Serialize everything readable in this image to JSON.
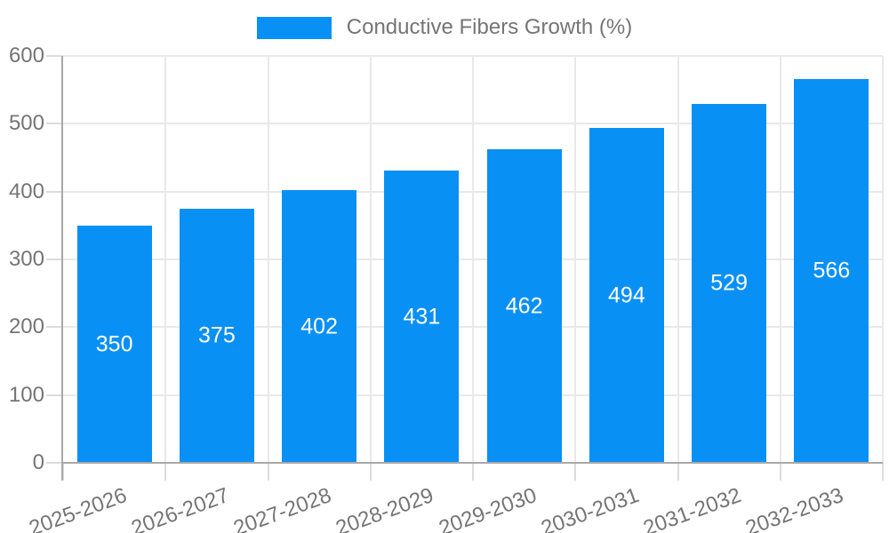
{
  "chart_data": {
    "type": "bar",
    "title": "",
    "legend": {
      "label": "Conductive Fibers Growth (%)",
      "position": "top-center"
    },
    "categories": [
      "2025-2026",
      "2026-2027",
      "2027-2028",
      "2028-2029",
      "2029-2030",
      "2030-2031",
      "2031-2032",
      "2032-2033"
    ],
    "values": [
      350,
      375,
      402,
      431,
      462,
      494,
      529,
      566
    ],
    "value_labels_shown": true,
    "value_label_position": "inside-center",
    "xlabel": "",
    "ylabel": "",
    "ylim": [
      0,
      600
    ],
    "yticks": [
      0,
      100,
      200,
      300,
      400,
      500,
      600
    ],
    "grid": true,
    "x_label_rotation_deg": -20,
    "colors": {
      "bar": "#0990f5",
      "value_label": "#ffffff",
      "axis_text": "#757575",
      "legend_text": "#757575",
      "axis_line": "#a8a8a8",
      "grid_line": "#e9e9e9",
      "tick_mark": "#dcdcdc",
      "background": "#ffffff"
    }
  }
}
